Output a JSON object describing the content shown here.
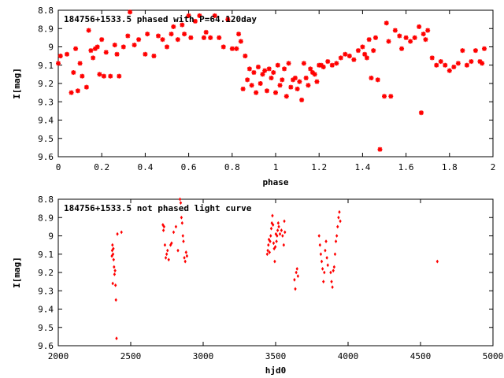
{
  "chart_data": [
    {
      "type": "scatter",
      "title": "184756+1533.5 phased with P=64.120day",
      "xlabel": "phase",
      "ylabel": "I[mag]",
      "xlim": [
        0,
        2
      ],
      "ylim": [
        8.8,
        9.6
      ],
      "y_inverted": true,
      "xticks": [
        "0",
        "0.2",
        "0.4",
        "0.6",
        "0.8",
        "1",
        "1.2",
        "1.4",
        "1.6",
        "1.8",
        "2"
      ],
      "yticks": [
        "8.8",
        "8.9",
        "9",
        "9.1",
        "9.2",
        "9.3",
        "9.4",
        "9.5",
        "9.6"
      ],
      "marker": "star",
      "color": "#ff0000",
      "x": [
        0.0,
        0.01,
        0.04,
        0.06,
        0.07,
        0.08,
        0.09,
        0.1,
        0.11,
        0.13,
        0.14,
        0.15,
        0.16,
        0.17,
        0.18,
        0.19,
        0.2,
        0.21,
        0.22,
        0.24,
        0.26,
        0.27,
        0.28,
        0.3,
        0.32,
        0.33,
        0.35,
        0.37,
        0.4,
        0.41,
        0.44,
        0.46,
        0.48,
        0.5,
        0.52,
        0.53,
        0.55,
        0.57,
        0.58,
        0.6,
        0.61,
        0.63,
        0.65,
        0.67,
        0.68,
        0.7,
        0.72,
        0.74,
        0.76,
        0.78,
        0.8,
        0.82,
        0.83,
        0.84,
        0.85,
        0.86,
        0.87,
        0.88,
        0.89,
        0.9,
        0.91,
        0.92,
        0.93,
        0.94,
        0.95,
        0.96,
        0.97,
        0.98,
        0.99,
        1.0,
        1.01,
        1.02,
        1.03,
        1.04,
        1.05,
        1.06,
        1.07,
        1.08,
        1.09,
        1.1,
        1.11,
        1.12,
        1.13,
        1.14,
        1.15,
        1.16,
        1.17,
        1.18,
        1.19,
        1.2,
        1.21,
        1.22,
        1.24,
        1.26,
        1.28,
        1.3,
        1.32,
        1.34,
        1.36,
        1.38,
        1.4,
        1.41,
        1.42,
        1.43,
        1.44,
        1.45,
        1.46,
        1.47,
        1.48,
        1.5,
        1.51,
        1.52,
        1.53,
        1.55,
        1.57,
        1.58,
        1.6,
        1.62,
        1.64,
        1.66,
        1.67,
        1.68,
        1.69,
        1.7,
        1.72,
        1.74,
        1.76,
        1.78,
        1.8,
        1.82,
        1.84,
        1.86,
        1.88,
        1.9,
        1.92,
        1.94,
        1.95,
        1.96
      ],
      "y": [
        9.09,
        9.05,
        9.04,
        9.25,
        9.14,
        9.01,
        9.24,
        9.09,
        9.16,
        9.22,
        8.91,
        9.02,
        9.06,
        9.01,
        9.0,
        9.15,
        8.96,
        9.16,
        9.03,
        9.16,
        8.99,
        9.04,
        9.16,
        9.0,
        8.94,
        8.81,
        8.99,
        8.96,
        9.04,
        8.93,
        9.05,
        8.94,
        8.96,
        9.0,
        8.93,
        8.89,
        8.96,
        8.88,
        8.93,
        8.83,
        8.95,
        8.86,
        8.83,
        8.95,
        8.92,
        8.95,
        8.83,
        8.95,
        9.0,
        8.85,
        9.01,
        9.01,
        8.93,
        8.97,
        9.23,
        9.05,
        9.18,
        9.12,
        9.21,
        9.14,
        9.25,
        9.11,
        9.2,
        9.15,
        9.13,
        9.24,
        9.12,
        9.17,
        9.14,
        9.25,
        9.1,
        9.21,
        9.18,
        9.12,
        9.27,
        9.09,
        9.22,
        9.18,
        9.17,
        9.23,
        9.19,
        9.29,
        9.09,
        9.17,
        9.21,
        9.12,
        9.14,
        9.15,
        9.19,
        9.1,
        9.1,
        9.11,
        9.08,
        9.1,
        9.09,
        9.06,
        9.04,
        9.05,
        9.07,
        9.02,
        9.0,
        9.04,
        9.06,
        8.96,
        9.17,
        9.02,
        8.95,
        9.18,
        9.56,
        9.27,
        8.87,
        8.97,
        9.27,
        8.91,
        8.94,
        9.01,
        8.95,
        8.97,
        8.95,
        8.89,
        9.36,
        8.93,
        8.96,
        8.91,
        9.06,
        9.1,
        9.08,
        9.1,
        9.13,
        9.11,
        9.09,
        9.02,
        9.1,
        9.08,
        9.02,
        9.08,
        9.09,
        9.01
      ]
    },
    {
      "type": "scatter",
      "title": "184756+1533.5 not phased light curve",
      "xlabel": "hjd0",
      "ylabel": "I[mag]",
      "xlim": [
        2000,
        5000
      ],
      "ylim": [
        8.8,
        9.6
      ],
      "y_inverted": true,
      "xticks": [
        "2000",
        "2500",
        "3000",
        "3500",
        "4000",
        "4500",
        "5000"
      ],
      "yticks": [
        "8.8",
        "8.9",
        "9",
        "9.1",
        "9.2",
        "9.3",
        "9.4",
        "9.5",
        "9.6"
      ],
      "marker": "diamond",
      "color": "#ff0000",
      "x": [
        2370,
        2372,
        2374,
        2376,
        2378,
        2380,
        2382,
        2385,
        2388,
        2392,
        2395,
        2398,
        2402,
        2408,
        2436,
        2722,
        2726,
        2730,
        2736,
        2742,
        2748,
        2754,
        2762,
        2775,
        2782,
        2796,
        2812,
        2826,
        2840,
        2845,
        2850,
        2855,
        2860,
        2864,
        2870,
        2876,
        2882,
        2888,
        3442,
        3446,
        3450,
        3454,
        3458,
        3462,
        3466,
        3470,
        3474,
        3478,
        3482,
        3486,
        3490,
        3494,
        3498,
        3502,
        3506,
        3510,
        3514,
        3518,
        3522,
        3530,
        3540,
        3548,
        3556,
        3560,
        3564,
        3630,
        3636,
        3642,
        3648,
        3654,
        3800,
        3806,
        3812,
        3818,
        3824,
        3830,
        3836,
        3842,
        3848,
        3854,
        3860,
        3880,
        3886,
        3892,
        3898,
        3904,
        3910,
        3916,
        3922,
        3928,
        3934,
        3940,
        3946,
        4616
      ],
      "y": [
        9.11,
        9.08,
        9.05,
        9.26,
        9.1,
        9.07,
        9.13,
        9.17,
        9.21,
        9.19,
        9.27,
        9.35,
        9.56,
        8.99,
        8.98,
        8.94,
        8.97,
        8.95,
        9.05,
        9.12,
        9.1,
        9.08,
        9.13,
        9.05,
        9.04,
        8.98,
        8.95,
        9.08,
        8.8,
        8.82,
        8.9,
        8.93,
        9.0,
        9.03,
        9.12,
        9.14,
        9.09,
        9.11,
        9.1,
        9.08,
        9.05,
        9.02,
        9.09,
        9.03,
        9.0,
        8.96,
        8.93,
        8.89,
        8.94,
        9.04,
        9.07,
        9.14,
        9.06,
        8.99,
        9.03,
        9.0,
        8.97,
        8.93,
        8.95,
        8.99,
        8.97,
        9.0,
        9.05,
        8.92,
        8.98,
        9.24,
        9.29,
        9.2,
        9.18,
        9.22,
        9.0,
        9.05,
        9.1,
        9.14,
        9.18,
        9.25,
        9.2,
        9.08,
        9.03,
        9.12,
        9.16,
        9.2,
        9.25,
        9.28,
        9.19,
        9.17,
        9.1,
        9.03,
        9.0,
        8.95,
        8.9,
        8.87,
        8.92,
        9.14
      ]
    }
  ]
}
